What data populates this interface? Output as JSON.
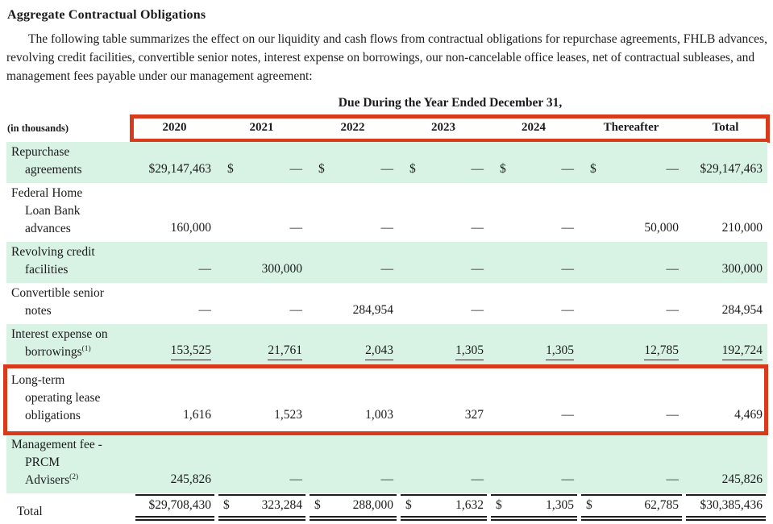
{
  "page": {
    "title": "Aggregate Contractual Obligations",
    "intro": "The following table summarizes the effect on our liquidity and cash flows from contractual obligations for repurchase agreements, FHLB advances, revolving credit facilities, convertible senior notes, interest expense on borrowings, our non-cancelable office leases, net of contractual subleases, and management fees payable under our management agreement:"
  },
  "table": {
    "units_note": "(in thousands)",
    "group_header": "Due During the Year Ended December 31,",
    "columns": [
      "2020",
      "2021",
      "2022",
      "2023",
      "2024",
      "Thereafter",
      "Total"
    ],
    "rows": [
      {
        "id": "repurchase-agreements",
        "label_lines": [
          "Repurchase",
          "agreements"
        ],
        "shaded": true,
        "cells": [
          {
            "v": "$29,147,463"
          },
          {
            "d": "$",
            "v": "—"
          },
          {
            "d": "$",
            "v": "—"
          },
          {
            "d": "$",
            "v": "—"
          },
          {
            "d": "$",
            "v": "—"
          },
          {
            "d": "$",
            "v": "—"
          },
          {
            "v": "$29,147,463"
          }
        ]
      },
      {
        "id": "fhlb-advances",
        "label_lines": [
          "Federal Home",
          "Loan Bank",
          "advances"
        ],
        "shaded": false,
        "cells": [
          {
            "v": "160,000"
          },
          {
            "v": "—"
          },
          {
            "v": "—"
          },
          {
            "v": "—"
          },
          {
            "v": "—"
          },
          {
            "v": "50,000"
          },
          {
            "v": "210,000"
          }
        ]
      },
      {
        "id": "revolving-credit-facilities",
        "label_lines": [
          "Revolving credit",
          "facilities"
        ],
        "shaded": true,
        "cells": [
          {
            "v": "—"
          },
          {
            "v": "300,000"
          },
          {
            "v": "—"
          },
          {
            "v": "—"
          },
          {
            "v": "—"
          },
          {
            "v": "—"
          },
          {
            "v": "300,000"
          }
        ]
      },
      {
        "id": "convertible-senior-notes",
        "label_lines": [
          "Convertible senior",
          "notes"
        ],
        "shaded": false,
        "cells": [
          {
            "v": "—"
          },
          {
            "v": "—"
          },
          {
            "v": "284,954"
          },
          {
            "v": "—"
          },
          {
            "v": "—"
          },
          {
            "v": "—"
          },
          {
            "v": "284,954"
          }
        ]
      },
      {
        "id": "interest-expense-borrowings",
        "label_lines": [
          "Interest expense on",
          "borrowings"
        ],
        "label_sup": "(1)",
        "shaded": true,
        "underline_values": true,
        "cells": [
          {
            "v": "153,525"
          },
          {
            "v": "21,761"
          },
          {
            "v": "2,043"
          },
          {
            "v": "1,305"
          },
          {
            "v": "1,305"
          },
          {
            "v": "12,785"
          },
          {
            "v": "192,724"
          }
        ]
      },
      {
        "id": "long-term-operating-lease",
        "label_lines": [
          "Long-term",
          "operating lease",
          "obligations"
        ],
        "shaded": false,
        "highlighted": true,
        "cells": [
          {
            "v": "1,616"
          },
          {
            "v": "1,523"
          },
          {
            "v": "1,003"
          },
          {
            "v": "327"
          },
          {
            "v": "—"
          },
          {
            "v": "—"
          },
          {
            "v": "4,469"
          }
        ]
      },
      {
        "id": "management-fee-prcm",
        "label_lines": [
          "Management fee -",
          "PRCM",
          "Advisers"
        ],
        "label_sup": "(2)",
        "shaded": true,
        "cells": [
          {
            "v": "245,826"
          },
          {
            "v": "—"
          },
          {
            "v": "—"
          },
          {
            "v": "—"
          },
          {
            "v": "—"
          },
          {
            "v": "—"
          },
          {
            "v": "245,826"
          }
        ]
      },
      {
        "id": "total",
        "label_lines": [
          "Total"
        ],
        "shaded": false,
        "total": true,
        "cells": [
          {
            "v": "$29,708,430"
          },
          {
            "d": "$",
            "v": "323,284"
          },
          {
            "d": "$",
            "v": "288,000"
          },
          {
            "d": "$",
            "v": "1,632"
          },
          {
            "d": "$",
            "v": "1,305"
          },
          {
            "d": "$",
            "v": "62,785"
          },
          {
            "v": "$30,385,436"
          }
        ]
      }
    ]
  },
  "annotations": {
    "highlight_color": "#d93a1c",
    "highlighted_regions": [
      "year-header-row",
      "long-term-operating-lease-row"
    ]
  },
  "colors": {
    "row_shade": "#d8f3e4",
    "text": "#1b1b1b",
    "background": "#ffffff"
  }
}
